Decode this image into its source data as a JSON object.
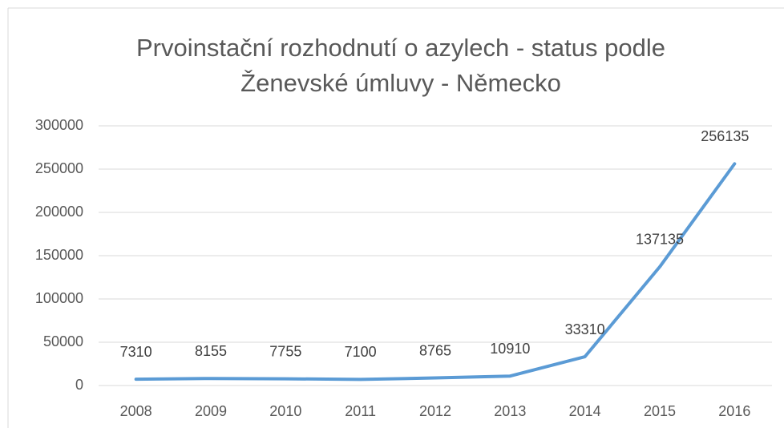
{
  "chart_data": {
    "type": "line",
    "title": "Prvoinstační rozhodnutí o azylech - status podle Ženevské úmluvy - Německo",
    "categories": [
      "2008",
      "2009",
      "2010",
      "2011",
      "2012",
      "2013",
      "2014",
      "2015",
      "2016"
    ],
    "values": [
      7310,
      8155,
      7755,
      7100,
      8765,
      10910,
      33310,
      137135,
      256135
    ],
    "color": "#5b9bd5",
    "ylim": [
      0,
      300000
    ],
    "yticks": [
      0,
      50000,
      100000,
      150000,
      200000,
      250000,
      300000
    ],
    "grid": true,
    "data_labels": true
  }
}
